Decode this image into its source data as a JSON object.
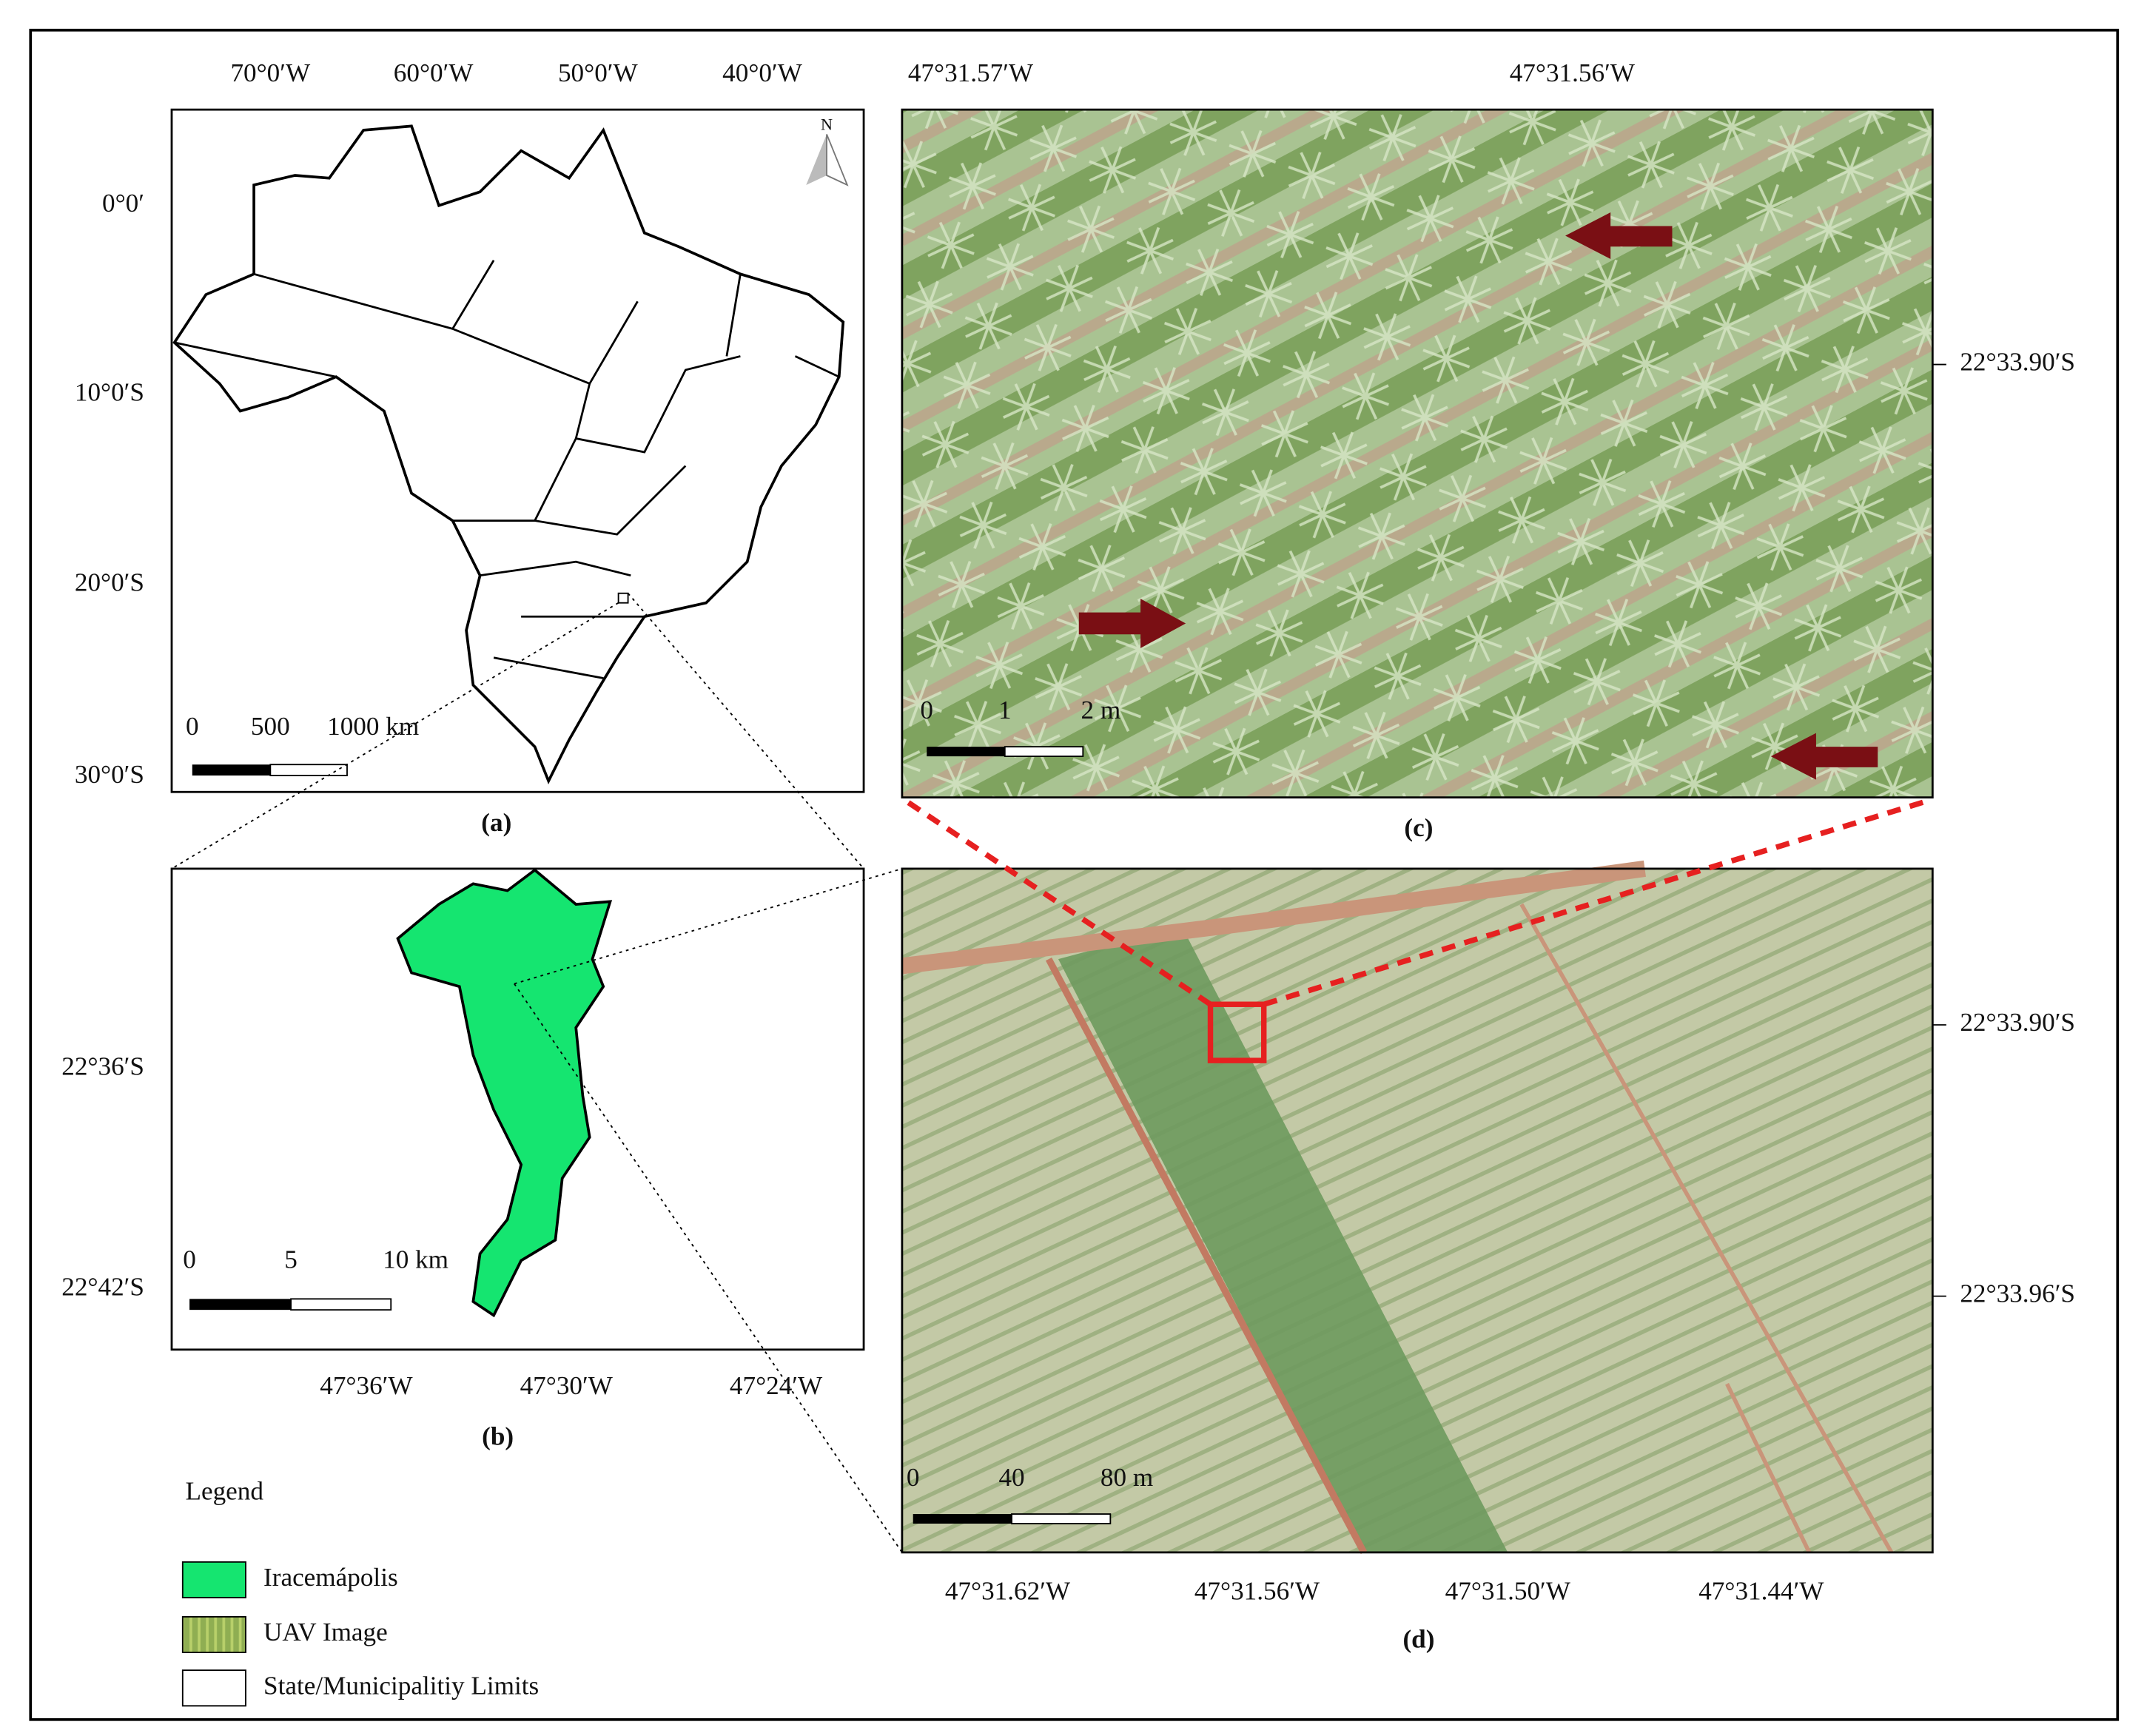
{
  "panel_a": {
    "caption": "(a)",
    "top_labels": [
      "70°0′W",
      "60°0′W",
      "50°0′W",
      "40°0′W"
    ],
    "left_labels": [
      "0°0′",
      "10°0′S",
      "20°0′S",
      "30°0′S"
    ],
    "scale_labels": [
      "0",
      "500",
      "1000 km"
    ],
    "north": "N"
  },
  "panel_b": {
    "caption": "(b)",
    "left_labels": [
      "22°36′S",
      "22°42′S"
    ],
    "bottom_labels": [
      "47°36′W",
      "47°30′W",
      "47°24′W"
    ],
    "scale_labels": [
      "0",
      "5",
      "10 km"
    ]
  },
  "panel_c": {
    "caption": "(c)",
    "top_labels": [
      "47°31.57′W",
      "47°31.56′W"
    ],
    "right_labels": [
      "22°33.90′S"
    ],
    "scale_labels": [
      "0",
      "1",
      "2 m"
    ]
  },
  "panel_d": {
    "caption": "(d)",
    "right_labels": [
      "22°33.90′S",
      "22°33.96′S"
    ],
    "bottom_labels": [
      "47°31.62′W",
      "47°31.56′W",
      "47°31.50′W",
      "47°31.44′W"
    ],
    "scale_labels": [
      "0",
      "40",
      "80 m"
    ]
  },
  "legend": {
    "title": "Legend",
    "items": [
      "Iracemápolis",
      "UAV Image",
      "State/Municipalitiy Limits"
    ]
  }
}
